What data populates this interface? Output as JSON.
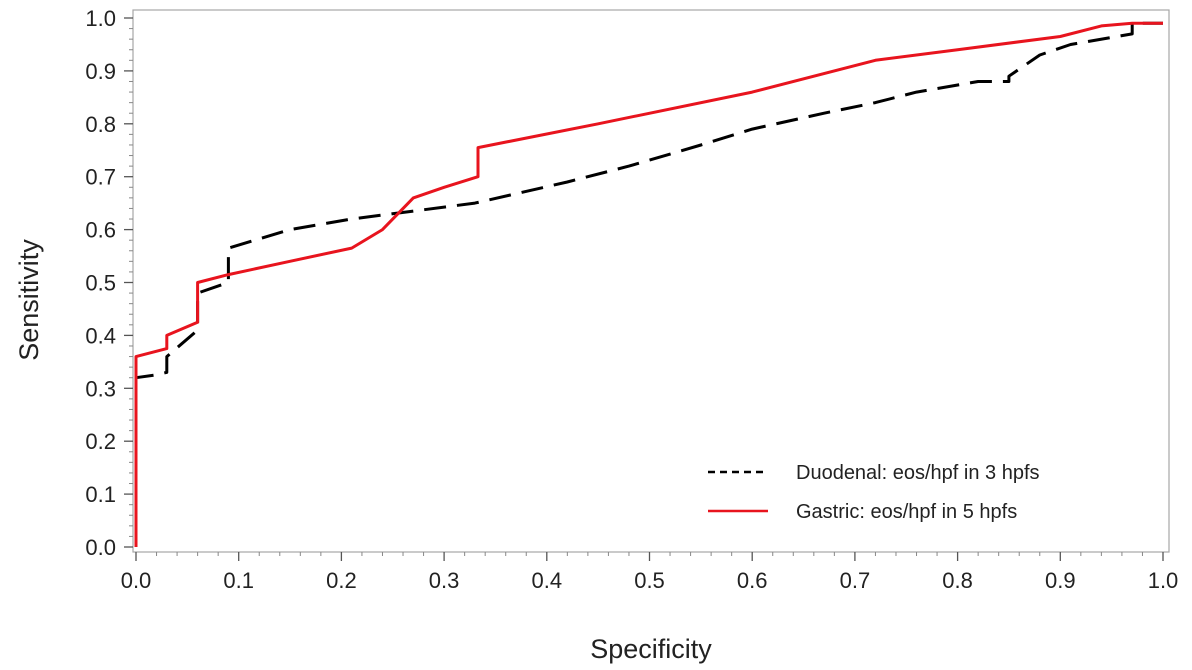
{
  "chart_data": {
    "type": "line",
    "title": "",
    "xlabel": "Specificity",
    "ylabel": "Sensitivity",
    "xlim": [
      0,
      1
    ],
    "ylim": [
      0,
      1
    ],
    "x_ticks": [
      "0.0",
      "0.1",
      "0.2",
      "0.3",
      "0.4",
      "0.5",
      "0.6",
      "0.7",
      "0.8",
      "0.9",
      "1.0"
    ],
    "y_ticks": [
      "0.0",
      "0.1",
      "0.2",
      "0.3",
      "0.4",
      "0.5",
      "0.6",
      "0.7",
      "0.8",
      "0.9",
      "1.0"
    ],
    "grid": false,
    "legend_position": "bottom-right",
    "series": [
      {
        "name": "Duodenal: eos/hpf in 3 hpfs",
        "color": "#000000",
        "style": "dashed",
        "x": [
          0.0,
          0.0,
          0.0,
          0.018,
          0.03,
          0.03,
          0.06,
          0.06,
          0.09,
          0.09,
          0.15,
          0.21,
          0.27,
          0.33,
          0.42,
          0.48,
          0.55,
          0.6,
          0.67,
          0.72,
          0.76,
          0.82,
          0.85,
          0.85,
          0.88,
          0.91,
          0.97,
          0.97,
          1.0
        ],
        "y": [
          0.0,
          0.01,
          0.32,
          0.325,
          0.33,
          0.36,
          0.41,
          0.48,
          0.5,
          0.565,
          0.6,
          0.62,
          0.635,
          0.65,
          0.69,
          0.72,
          0.76,
          0.79,
          0.82,
          0.84,
          0.86,
          0.88,
          0.88,
          0.89,
          0.93,
          0.95,
          0.97,
          0.99,
          0.99
        ]
      },
      {
        "name": "Gastric: eos/hpf in 5 hpfs",
        "color": "#e8141e",
        "style": "solid",
        "x": [
          0.0,
          0.0,
          0.0,
          0.03,
          0.03,
          0.06,
          0.06,
          0.09,
          0.15,
          0.21,
          0.24,
          0.27,
          0.3,
          0.333,
          0.333,
          0.45,
          0.6,
          0.72,
          0.8,
          0.9,
          0.94,
          0.97,
          1.0
        ],
        "y": [
          0.0,
          0.02,
          0.36,
          0.375,
          0.4,
          0.425,
          0.5,
          0.515,
          0.54,
          0.565,
          0.6,
          0.66,
          0.68,
          0.7,
          0.755,
          0.8,
          0.86,
          0.92,
          0.94,
          0.965,
          0.985,
          0.99,
          0.99
        ]
      }
    ]
  }
}
